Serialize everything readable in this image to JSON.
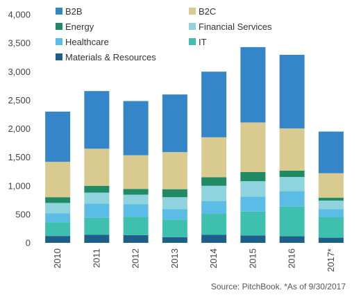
{
  "chart_data": {
    "type": "bar",
    "stacked": true,
    "categories": [
      "2010",
      "2011",
      "2012",
      "2013",
      "2014",
      "2015",
      "2016",
      "2017*"
    ],
    "ylim": [
      0,
      4000
    ],
    "yticks": [
      "0",
      "500",
      "1,000",
      "1,500",
      "2,000",
      "2,500",
      "3,000",
      "3,500",
      "4,000"
    ],
    "grid": false,
    "legend_position": "top",
    "series": [
      {
        "name": "Materials & Resources",
        "color": "#1e5e8a",
        "values": [
          120,
          140,
          135,
          100,
          140,
          130,
          115,
          90
        ]
      },
      {
        "name": "IT",
        "color": "#3fbfad",
        "values": [
          240,
          300,
          320,
          310,
          370,
          420,
          520,
          360
        ]
      },
      {
        "name": "Healthcare",
        "color": "#5bbde6",
        "values": [
          160,
          250,
          220,
          180,
          220,
          260,
          270,
          140
        ]
      },
      {
        "name": "Financial Services",
        "color": "#8ed3dd",
        "values": [
          180,
          190,
          170,
          210,
          270,
          270,
          250,
          150
        ]
      },
      {
        "name": "Energy",
        "color": "#1f8a63",
        "values": [
          100,
          120,
          100,
          140,
          150,
          160,
          110,
          50
        ]
      },
      {
        "name": "B2C",
        "color": "#d9cb8f",
        "values": [
          620,
          650,
          590,
          650,
          700,
          870,
          740,
          430
        ]
      },
      {
        "name": "B2B",
        "color": "#3586c9",
        "values": [
          880,
          1010,
          950,
          1010,
          1150,
          1320,
          1290,
          730
        ]
      }
    ],
    "legend_order": [
      "B2B",
      "B2C",
      "Energy",
      "Financial Services",
      "Healthcare",
      "IT",
      "Materials & Resources"
    ]
  },
  "source_note": "Source: PitchBook. *As of 9/30/2017"
}
